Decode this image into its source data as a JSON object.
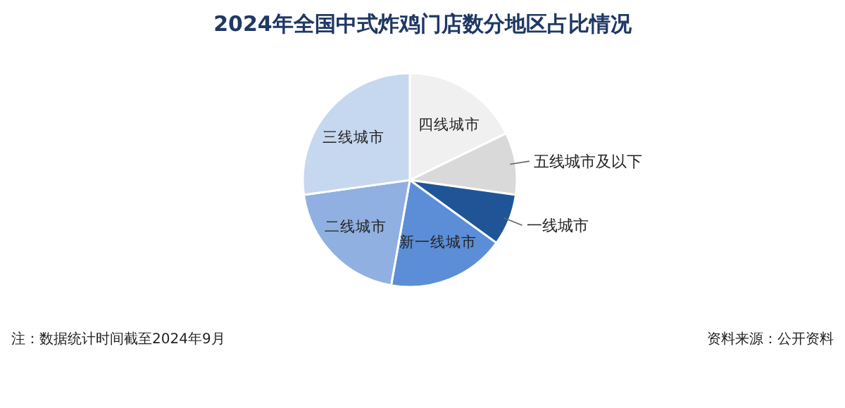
{
  "chart_data": {
    "type": "pie",
    "title": "2024年全国中式炸鸡门店数分地区占比情况",
    "categories": [
      "四线城市",
      "五线城市及以下",
      "一线城市",
      "新一线城市",
      "二线城市",
      "三线城市"
    ],
    "values": [
      17.8,
      9.4,
      7.8,
      17.8,
      20.0,
      27.2
    ],
    "colors": [
      "#f0f0f0",
      "#d9d9d9",
      "#1f5597",
      "#5b8ed6",
      "#8fb0e0",
      "#c6d7f0"
    ],
    "annotations": [
      "注：数据统计时间截至2024年9月",
      "资料来源：公开资料"
    ]
  }
}
